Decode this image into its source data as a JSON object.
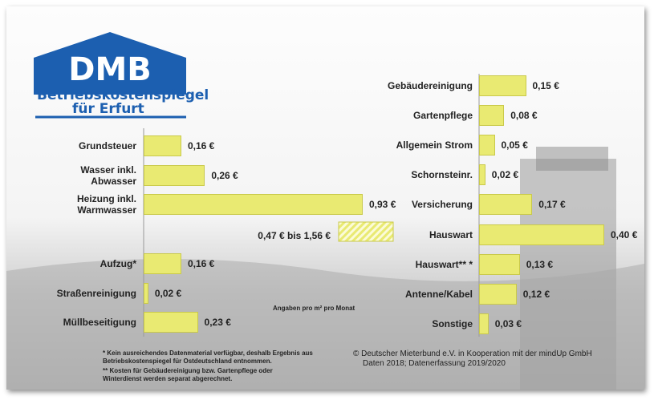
{
  "logo": {
    "mark": "DMB",
    "line1": "Betriebskostenspiegel",
    "line2": "für Erfurt"
  },
  "chart_data": [
    {
      "type": "bar",
      "orientation": "horizontal",
      "color": "#e9ea72",
      "categories": [
        "Grundsteuer",
        "Wasser inkl. Abwasser",
        "Heizung inkl. Warmwasser",
        "Aufzug*",
        "Straßenreinigung",
        "Müllbeseitigung"
      ],
      "values": [
        0.16,
        0.26,
        0.93,
        0.16,
        0.02,
        0.23
      ],
      "value_labels": [
        "0,16 €",
        "0,26 €",
        "0,93 €",
        "0,16 €",
        "0,02 €",
        "0,23 €"
      ],
      "annotations": [
        "0,47 € bis 1,56 €"
      ]
    },
    {
      "type": "bar",
      "orientation": "horizontal",
      "color": "#e9ea72",
      "categories": [
        "Gebäudereinigung",
        "Gartenpflege",
        "Allgemein Strom",
        "Schornsteinr.",
        "Versicherung",
        "Hauswart",
        "Hauswart** *",
        "Antenne/Kabel",
        "Sonstige"
      ],
      "values": [
        0.15,
        0.08,
        0.05,
        0.02,
        0.17,
        0.4,
        0.13,
        0.12,
        0.03
      ],
      "value_labels": [
        "0,15 €",
        "0,08 €",
        "0,05 €",
        "0,02 €",
        "0,17 €",
        "0,40 €",
        "0,13 €",
        "0,12 €",
        "0,03 €"
      ]
    }
  ],
  "unit_note": "Angaben pro m² pro Monat",
  "footnotes": [
    "* Kein ausreichendes Datenmaterial verfügbar, deshalb Ergebnis aus Betriebskostenspiegel für Ostdeutschland entnommen.",
    "** Kosten für Gebäudereinigung bzw. Gartenpflege oder Winterdienst werden separat abgerechnet."
  ],
  "credits": [
    "© Deutscher Mieterbund e.V. in Kooperation mit der mindUp GmbH",
    "Daten 2018; Datenerfassung 2019/2020"
  ]
}
